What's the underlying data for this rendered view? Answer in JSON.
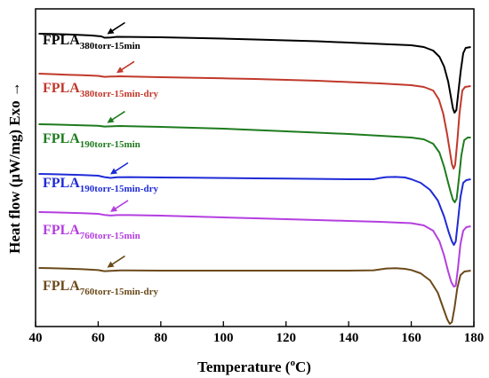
{
  "chart_data": {
    "type": "line",
    "xlabel": "Temperature (",
    "xlabel_sup": "o",
    "xlabel_end": "C)",
    "ylabel": "Heat flow (μW/mg) Exo →",
    "xlim": [
      40,
      180
    ],
    "xticks": [
      "40",
      "60",
      "80",
      "100",
      "120",
      "140",
      "160",
      "180"
    ],
    "grid": false,
    "series": [
      {
        "name_main": "FPLA",
        "name_sub": "380torr-15min",
        "color": "#000000",
        "arrow_temp": 62,
        "points": [
          [
            41,
            28
          ],
          [
            45,
            28.3
          ],
          [
            50,
            28.8
          ],
          [
            55,
            29.5
          ],
          [
            58,
            30
          ],
          [
            61,
            31
          ],
          [
            62,
            32.5
          ],
          [
            64,
            32.2
          ],
          [
            66,
            31.5
          ],
          [
            70,
            31.6
          ],
          [
            80,
            32
          ],
          [
            90,
            32.8
          ],
          [
            100,
            33.5
          ],
          [
            110,
            34.5
          ],
          [
            120,
            35.5
          ],
          [
            130,
            36.5
          ],
          [
            140,
            38
          ],
          [
            150,
            39.5
          ],
          [
            160,
            41
          ],
          [
            164,
            43
          ],
          [
            167,
            47
          ],
          [
            169,
            54
          ],
          [
            170.5,
            65
          ],
          [
            171.8,
            82
          ],
          [
            172.7,
            100
          ],
          [
            173.3,
            112
          ],
          [
            173.8,
            117
          ],
          [
            174.4,
            114
          ],
          [
            175,
            95
          ],
          [
            175.8,
            70
          ],
          [
            176.6,
            50
          ],
          [
            177.4,
            44
          ],
          [
            179,
            43
          ]
        ]
      },
      {
        "name_main": "FPLA",
        "name_sub": "380torr-15min-dry",
        "color": "#c0392b",
        "arrow_temp": 65,
        "points": [
          [
            41,
            73
          ],
          [
            45,
            73.5
          ],
          [
            50,
            74.2
          ],
          [
            55,
            74.8
          ],
          [
            60,
            75.5
          ],
          [
            62,
            76.6
          ],
          [
            64,
            76.3
          ],
          [
            67,
            76
          ],
          [
            70,
            76.2
          ],
          [
            80,
            77
          ],
          [
            90,
            77.6
          ],
          [
            100,
            78.3
          ],
          [
            110,
            79
          ],
          [
            120,
            80
          ],
          [
            130,
            81
          ],
          [
            140,
            82.5
          ],
          [
            150,
            84
          ],
          [
            160,
            86
          ],
          [
            164,
            88
          ],
          [
            167,
            92
          ],
          [
            168.8,
            102
          ],
          [
            170.2,
            118
          ],
          [
            171.4,
            140
          ],
          [
            172.3,
            160
          ],
          [
            173,
            175
          ],
          [
            173.5,
            180
          ],
          [
            174,
            176
          ],
          [
            174.7,
            150
          ],
          [
            175.4,
            118
          ],
          [
            176.3,
            92
          ],
          [
            177.2,
            88
          ],
          [
            179,
            87
          ]
        ]
      },
      {
        "name_main": "FPLA",
        "name_sub": "190torr-15min",
        "color": "#1e7b1e",
        "arrow_temp": 62,
        "points": [
          [
            41,
            130
          ],
          [
            45,
            130.3
          ],
          [
            50,
            130.8
          ],
          [
            55,
            131.3
          ],
          [
            60,
            131.8
          ],
          [
            62,
            132.6
          ],
          [
            64,
            132.4
          ],
          [
            67,
            132
          ],
          [
            70,
            132.2
          ],
          [
            80,
            133
          ],
          [
            90,
            134
          ],
          [
            100,
            135
          ],
          [
            110,
            136.5
          ],
          [
            120,
            138
          ],
          [
            130,
            139.5
          ],
          [
            140,
            141
          ],
          [
            150,
            143
          ],
          [
            160,
            145
          ],
          [
            164,
            147
          ],
          [
            167,
            152
          ],
          [
            169,
            162
          ],
          [
            170.5,
            178
          ],
          [
            171.8,
            196
          ],
          [
            172.7,
            208
          ],
          [
            173.3,
            215
          ],
          [
            173.9,
            218
          ],
          [
            174.5,
            214
          ],
          [
            175.2,
            192
          ],
          [
            176,
            165
          ],
          [
            176.9,
            148
          ],
          [
            178,
            145
          ],
          [
            179,
            145
          ]
        ]
      },
      {
        "name_main": "FPLA",
        "name_sub": "190torr-15min-dry",
        "color": "#1f2bd6",
        "arrow_temp": 63,
        "points": [
          [
            41,
            186
          ],
          [
            45,
            186.3
          ],
          [
            50,
            186.8
          ],
          [
            55,
            187.2
          ],
          [
            60,
            188
          ],
          [
            62,
            189.6
          ],
          [
            64,
            190.5
          ],
          [
            66,
            189.8
          ],
          [
            70,
            189.6
          ],
          [
            80,
            190
          ],
          [
            90,
            190.3
          ],
          [
            100,
            190.6
          ],
          [
            110,
            191
          ],
          [
            120,
            191.3
          ],
          [
            130,
            191.6
          ],
          [
            140,
            192
          ],
          [
            148,
            192
          ],
          [
            150,
            190.6
          ],
          [
            152,
            189.6
          ],
          [
            155,
            189.4
          ],
          [
            158,
            190
          ],
          [
            160,
            192
          ],
          [
            163,
            196
          ],
          [
            166,
            204
          ],
          [
            168.5,
            216
          ],
          [
            170.5,
            234
          ],
          [
            172,
            252
          ],
          [
            173,
            262
          ],
          [
            173.6,
            266
          ],
          [
            174.2,
            262
          ],
          [
            174.9,
            240
          ],
          [
            175.7,
            212
          ],
          [
            176.6,
            196
          ],
          [
            177.6,
            193
          ],
          [
            179,
            192
          ]
        ]
      },
      {
        "name_main": "FPLA",
        "name_sub": "760torr-15min",
        "color": "#b43fe0",
        "arrow_temp": 63,
        "points": [
          [
            41,
            229
          ],
          [
            45,
            229.3
          ],
          [
            50,
            229.8
          ],
          [
            55,
            230.3
          ],
          [
            60,
            231
          ],
          [
            62,
            232.2
          ],
          [
            64,
            232.9
          ],
          [
            66,
            232.4
          ],
          [
            70,
            232.4
          ],
          [
            80,
            233
          ],
          [
            90,
            234
          ],
          [
            100,
            235
          ],
          [
            110,
            236
          ],
          [
            120,
            237
          ],
          [
            130,
            238
          ],
          [
            140,
            239
          ],
          [
            150,
            240
          ],
          [
            160,
            241.5
          ],
          [
            164,
            244
          ],
          [
            167,
            250
          ],
          [
            169,
            262
          ],
          [
            170.5,
            278
          ],
          [
            171.8,
            296
          ],
          [
            172.8,
            308
          ],
          [
            173.6,
            313
          ],
          [
            174.2,
            312
          ],
          [
            174.9,
            293
          ],
          [
            175.7,
            265
          ],
          [
            176.6,
            250
          ],
          [
            177.6,
            246
          ],
          [
            179,
            245
          ]
        ]
      },
      {
        "name_main": "FPLA",
        "name_sub": "760torr-15min-dry",
        "color": "#6b4a1b",
        "arrow_temp": 62,
        "points": [
          [
            41,
            292
          ],
          [
            45,
            292.3
          ],
          [
            50,
            292.8
          ],
          [
            55,
            293.4
          ],
          [
            60,
            294.4
          ],
          [
            62,
            295.6
          ],
          [
            64,
            295.2
          ],
          [
            67,
            294.8
          ],
          [
            70,
            294.8
          ],
          [
            80,
            295
          ],
          [
            90,
            295
          ],
          [
            100,
            295
          ],
          [
            110,
            295
          ],
          [
            120,
            295
          ],
          [
            130,
            295
          ],
          [
            140,
            295
          ],
          [
            148,
            294.6
          ],
          [
            152,
            292.6
          ],
          [
            155,
            292.3
          ],
          [
            158,
            293
          ],
          [
            160,
            294.3
          ],
          [
            163,
            298
          ],
          [
            166,
            306
          ],
          [
            168.5,
            320
          ],
          [
            170.3,
            338
          ],
          [
            171.5,
            350
          ],
          [
            172.3,
            355
          ],
          [
            173,
            353
          ],
          [
            173.8,
            337
          ],
          [
            174.7,
            315
          ],
          [
            175.7,
            300
          ],
          [
            177,
            296
          ],
          [
            179,
            295
          ]
        ]
      }
    ]
  }
}
